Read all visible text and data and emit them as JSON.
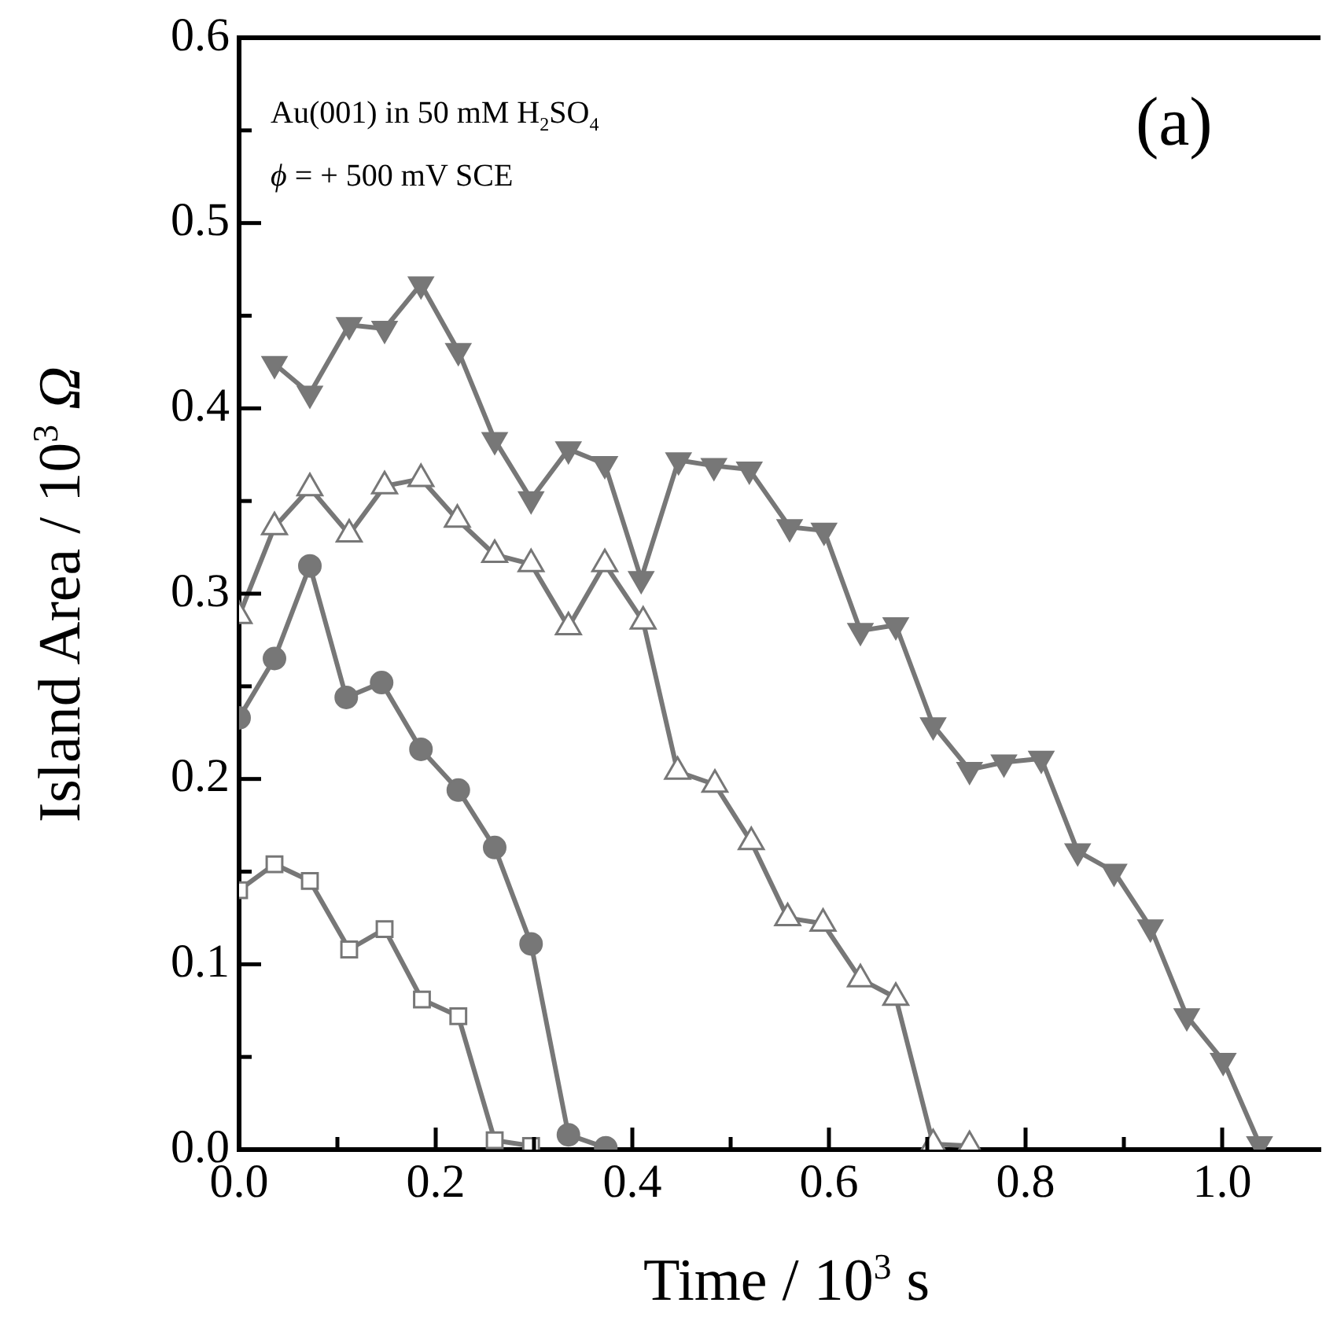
{
  "chart_data": {
    "type": "line",
    "xlabel": "Time / 10$^{3}$ s",
    "ylabel": "Island Area / 10$^{3}$ Ω",
    "annotations": [
      "Au(001) in 50 mM H$_{2}$SO$_{4}$",
      "ϕ = + 500 mV SCE",
      "(a)"
    ],
    "xlim": [
      0,
      1.1
    ],
    "xticks": [
      {
        "value": 0,
        "label": "0.0"
      },
      {
        "value": 0.1,
        "label": null
      },
      {
        "value": 0.2,
        "label": "0.2"
      },
      {
        "value": 0.3,
        "label": null
      },
      {
        "value": 0.4,
        "label": "0.4"
      },
      {
        "value": 0.5,
        "label": null
      },
      {
        "value": 0.6,
        "label": "0.6"
      },
      {
        "value": 0.7,
        "label": null
      },
      {
        "value": 0.8,
        "label": "0.8"
      },
      {
        "value": 0.9,
        "label": null
      },
      {
        "value": 1,
        "label": "1.0"
      }
    ],
    "ylim": [
      0,
      0.6
    ],
    "yticks": [
      {
        "value": 0,
        "label": "0.0"
      },
      {
        "value": 0.05,
        "label": null
      },
      {
        "value": 0.1,
        "label": "0.1"
      },
      {
        "value": 0.15,
        "label": null
      },
      {
        "value": 0.2,
        "label": "0.2"
      },
      {
        "value": 0.25,
        "label": null
      },
      {
        "value": 0.3,
        "label": "0.3"
      },
      {
        "value": 0.35,
        "label": null
      },
      {
        "value": 0.4,
        "label": "0.4"
      },
      {
        "value": 0.45,
        "label": null
      },
      {
        "value": 0.5,
        "label": "0.5"
      },
      {
        "value": 0.55,
        "label": null
      },
      {
        "value": 0.6,
        "label": "0.6"
      }
    ],
    "grid": false,
    "legend": false,
    "series": [
      {
        "color": "#777777",
        "marker": "square-open",
        "x": [
          0,
          0.036,
          0.072,
          0.112,
          0.148,
          0.186,
          0.223,
          0.26,
          0.297
        ],
        "values": [
          0.14,
          0.154,
          0.145,
          0.108,
          0.119,
          0.081,
          0.072,
          0.005,
          0.002
        ]
      },
      {
        "color": "#777777",
        "marker": "circle",
        "x": [
          0,
          0.036,
          0.072,
          0.109,
          0.145,
          0.185,
          0.223,
          0.26,
          0.297,
          0.335,
          0.373
        ],
        "values": [
          0.233,
          0.265,
          0.315,
          0.244,
          0.252,
          0.216,
          0.194,
          0.163,
          0.111,
          0.008,
          0.001
        ]
      },
      {
        "color": "#777777",
        "marker": "triangle-open",
        "x": [
          0,
          0.036,
          0.072,
          0.112,
          0.148,
          0.185,
          0.222,
          0.26,
          0.297,
          0.335,
          0.372,
          0.411,
          0.446,
          0.484,
          0.521,
          0.558,
          0.594,
          0.632,
          0.668,
          0.706,
          0.743
        ],
        "values": [
          0.288,
          0.336,
          0.357,
          0.332,
          0.358,
          0.362,
          0.34,
          0.321,
          0.316,
          0.282,
          0.316,
          0.285,
          0.204,
          0.197,
          0.166,
          0.125,
          0.122,
          0.092,
          0.082,
          0.003,
          0.002
        ]
      },
      {
        "color": "#777777",
        "marker": "triangle-down",
        "x": [
          0.036,
          0.072,
          0.112,
          0.148,
          0.185,
          0.223,
          0.26,
          0.297,
          0.335,
          0.372,
          0.409,
          0.447,
          0.483,
          0.519,
          0.56,
          0.595,
          0.632,
          0.668,
          0.706,
          0.743,
          0.778,
          0.816,
          0.853,
          0.89,
          0.927,
          0.964,
          1.001,
          1.038
        ],
        "values": [
          0.424,
          0.408,
          0.445,
          0.443,
          0.467,
          0.431,
          0.383,
          0.351,
          0.378,
          0.37,
          0.308,
          0.372,
          0.369,
          0.367,
          0.336,
          0.334,
          0.28,
          0.283,
          0.229,
          0.205,
          0.209,
          0.211,
          0.161,
          0.15,
          0.12,
          0.072,
          0.048,
          0.003
        ]
      }
    ]
  }
}
